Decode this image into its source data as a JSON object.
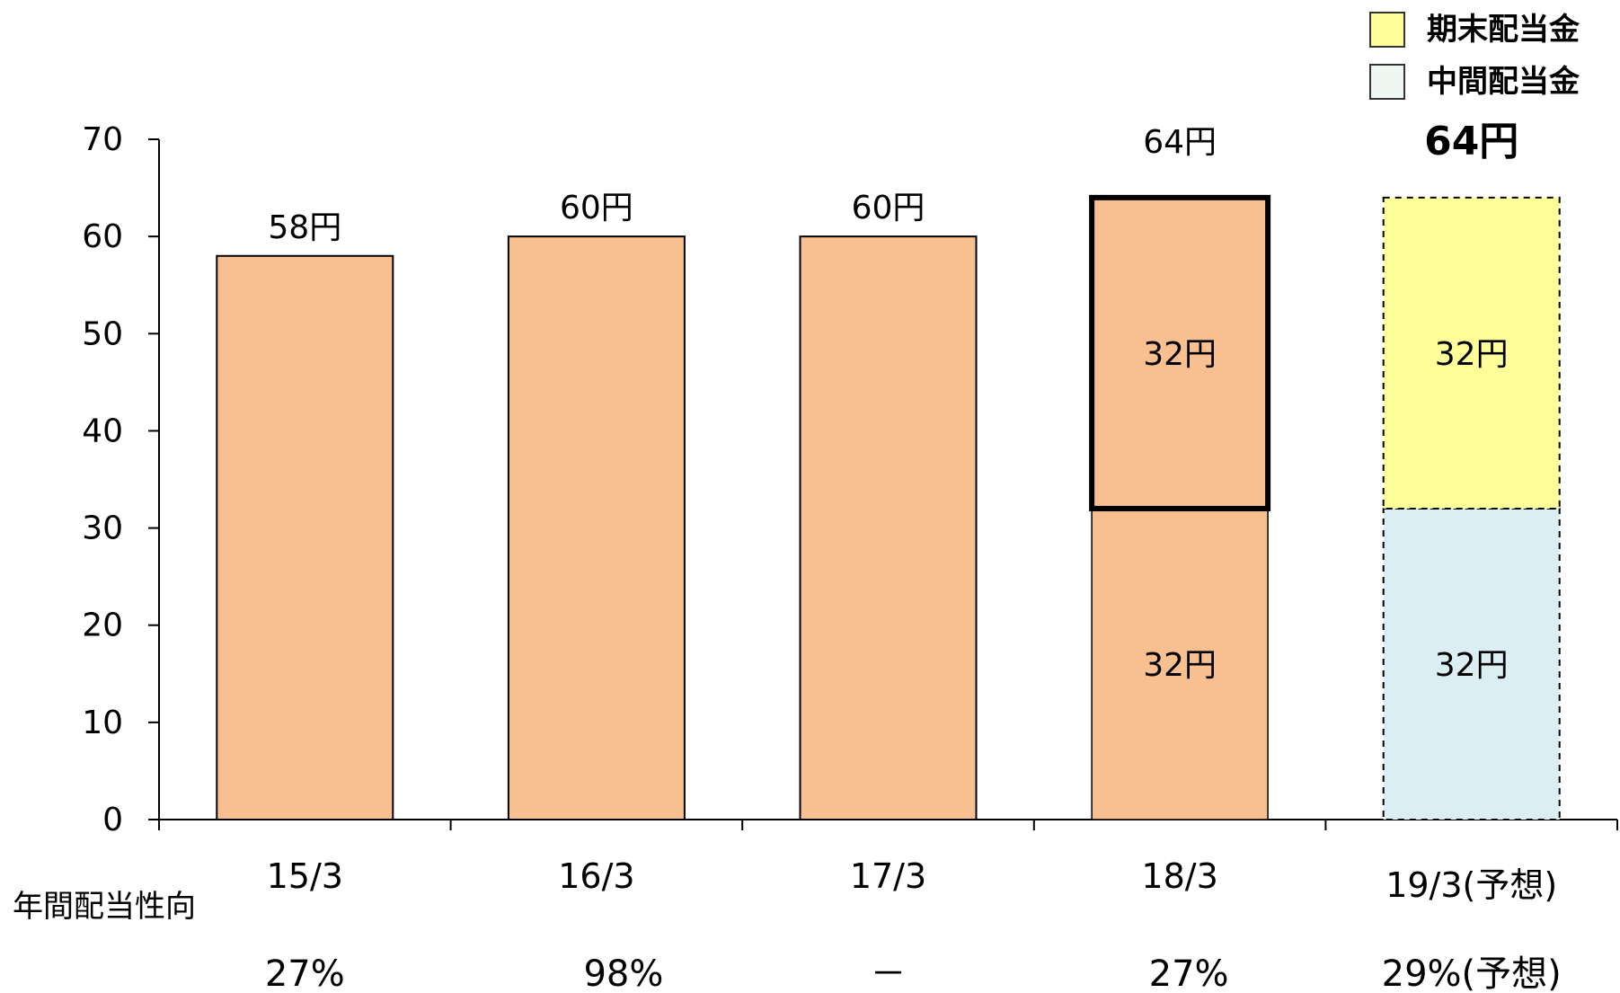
{
  "chart_data": {
    "type": "bar",
    "categories": [
      "15/3",
      "16/3",
      "17/3",
      "18/3",
      "19/3(予想)"
    ],
    "values": [
      58,
      60,
      60,
      64,
      64
    ],
    "stacks": [
      null,
      null,
      null,
      [
        32,
        32
      ],
      [
        32,
        32
      ]
    ],
    "bar_labels": [
      "58円",
      "60円",
      "60円",
      "64円",
      "64円"
    ],
    "segment_labels": [
      [],
      [],
      [],
      [
        "32円",
        "32円"
      ],
      [
        "32円",
        "32円"
      ]
    ],
    "ylim": [
      0,
      70
    ],
    "yticks": [
      0,
      10,
      20,
      30,
      40,
      50,
      60,
      70
    ],
    "legend": {
      "position": "top-right",
      "entries": [
        {
          "label": "期末配当金",
          "color": "#ffff99"
        },
        {
          "label": "中間配当金",
          "color": "#eef7f2"
        }
      ]
    },
    "payout_ratio": {
      "title": "年間配当性向",
      "values": [
        "27%",
        "98%",
        "－",
        "27%",
        "29%(予想)"
      ]
    },
    "colors": {
      "bar": "#f8bf90",
      "forecast_final": "#ffff99",
      "forecast_interim": "#dbeef3"
    }
  }
}
